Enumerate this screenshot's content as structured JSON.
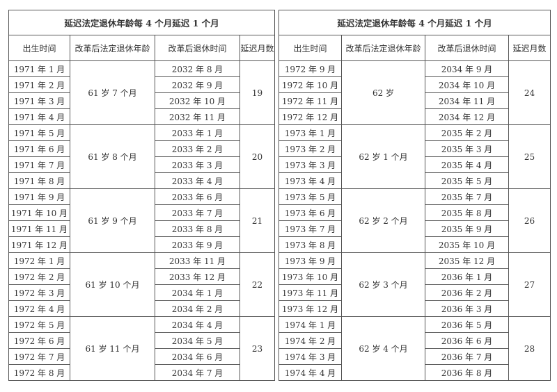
{
  "tables": [
    {
      "title": "延迟法定退休年龄每 4 个月延迟 1 个月",
      "headers": [
        "出生时间",
        "改革后法定退休年龄",
        "改革后退休时间",
        "延迟月数"
      ],
      "groups": [
        {
          "age": "61 岁 7 个月",
          "delay": 19,
          "rows": [
            [
              "1971 年 1 月",
              "2032 年 8 月"
            ],
            [
              "1971 年 2 月",
              "2032 年 9 月"
            ],
            [
              "1971 年 3 月",
              "2032 年 10 月"
            ],
            [
              "1971 年 4 月",
              "2032 年 11 月"
            ]
          ]
        },
        {
          "age": "61 岁 8 个月",
          "delay": 20,
          "rows": [
            [
              "1971 年 5 月",
              "2033 年 1 月"
            ],
            [
              "1971 年 6 月",
              "2033 年 2 月"
            ],
            [
              "1971 年 7 月",
              "2033 年 3 月"
            ],
            [
              "1971 年 8 月",
              "2033 年 4 月"
            ]
          ]
        },
        {
          "age": "61 岁 9 个月",
          "delay": 21,
          "rows": [
            [
              "1971 年 9 月",
              "2033 年 6 月"
            ],
            [
              "1971 年 10 月",
              "2033 年 7 月"
            ],
            [
              "1971 年 11 月",
              "2033 年 8 月"
            ],
            [
              "1971 年 12 月",
              "2033 年 9 月"
            ]
          ]
        },
        {
          "age": "61 岁 10 个月",
          "delay": 22,
          "rows": [
            [
              "1972 年 1 月",
              "2033 年 11 月"
            ],
            [
              "1972 年 2 月",
              "2033 年 12 月"
            ],
            [
              "1972 年 3 月",
              "2034 年 1 月"
            ],
            [
              "1972 年 4 月",
              "2034 年 2 月"
            ]
          ]
        },
        {
          "age": "61 岁 11 个月",
          "delay": 23,
          "rows": [
            [
              "1972 年 5 月",
              "2034 年 4 月"
            ],
            [
              "1972 年 6 月",
              "2034 年 5 月"
            ],
            [
              "1972 年 7 月",
              "2034 年 6 月"
            ],
            [
              "1972 年 8 月",
              "2034 年 7 月"
            ]
          ]
        }
      ]
    },
    {
      "title": "延迟法定退休年龄每 4 个月延迟 1 个月",
      "headers": [
        "出生时间",
        "改革后法定退休年龄",
        "改革后退休时间",
        "延迟月数"
      ],
      "groups": [
        {
          "age": "62 岁",
          "delay": 24,
          "rows": [
            [
              "1972 年 9 月",
              "2034 年 9 月"
            ],
            [
              "1972 年 10 月",
              "2034 年 10 月"
            ],
            [
              "1972 年 11 月",
              "2034 年 11 月"
            ],
            [
              "1972 年 12 月",
              "2034 年 12 月"
            ]
          ]
        },
        {
          "age": "62 岁 1 个月",
          "delay": 25,
          "rows": [
            [
              "1973 年 1 月",
              "2035 年 2 月"
            ],
            [
              "1973 年 2 月",
              "2035 年 3 月"
            ],
            [
              "1973 年 3 月",
              "2035 年 4 月"
            ],
            [
              "1973 年 4 月",
              "2035 年 5 月"
            ]
          ]
        },
        {
          "age": "62 岁 2 个月",
          "delay": 26,
          "rows": [
            [
              "1973 年 5 月",
              "2035 年 7 月"
            ],
            [
              "1973 年 6 月",
              "2035 年 8 月"
            ],
            [
              "1973 年 7 月",
              "2035 年 9 月"
            ],
            [
              "1973 年 8 月",
              "2035 年 10 月"
            ]
          ]
        },
        {
          "age": "62 岁 3 个月",
          "delay": 27,
          "rows": [
            [
              "1973 年 9 月",
              "2035 年 12 月"
            ],
            [
              "1973 年 10 月",
              "2036 年 1 月"
            ],
            [
              "1973 年 11 月",
              "2036 年 2 月"
            ],
            [
              "1973 年 12 月",
              "2036 年 3 月"
            ]
          ]
        },
        {
          "age": "62 岁 4 个月",
          "delay": 28,
          "rows": [
            [
              "1974 年 1 月",
              "2036 年 5 月"
            ],
            [
              "1974 年 2 月",
              "2036 年 6 月"
            ],
            [
              "1974 年 3 月",
              "2036 年 7 月"
            ],
            [
              "1974 年 4 月",
              "2036 年 8 月"
            ]
          ]
        }
      ]
    }
  ]
}
